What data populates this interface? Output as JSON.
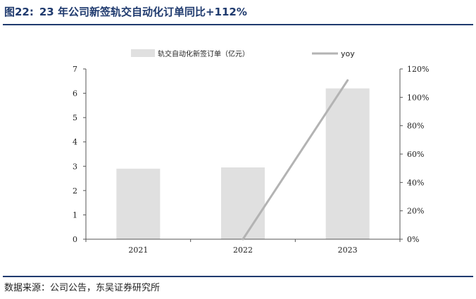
{
  "header": {
    "figure_number": "图22:",
    "title": "23 年公司新签轨交自动化订单同比+112%"
  },
  "source": "数据来源：公司公告，东吴证券研究所",
  "chart_data": {
    "type": "bar",
    "categories": [
      "2021",
      "2022",
      "2023"
    ],
    "series": [
      {
        "name": "轨交自动化新签订单（亿元）",
        "type": "bar",
        "axis": "left",
        "color": "#e0e0e0",
        "values": [
          2.9,
          2.95,
          6.2
        ]
      },
      {
        "name": "yoy",
        "type": "line",
        "axis": "right",
        "color": "#b3b3b3",
        "values": [
          null,
          0.0,
          1.12
        ]
      }
    ],
    "y_left": {
      "min": 0,
      "max": 7,
      "ticks": [
        "0",
        "1",
        "2",
        "3",
        "4",
        "5",
        "6",
        "7"
      ]
    },
    "y_right": {
      "min": 0,
      "max": 1.2,
      "ticks": [
        "0%",
        "20%",
        "40%",
        "60%",
        "80%",
        "100%",
        "120%"
      ]
    },
    "legend_position": "top",
    "grid": false
  }
}
